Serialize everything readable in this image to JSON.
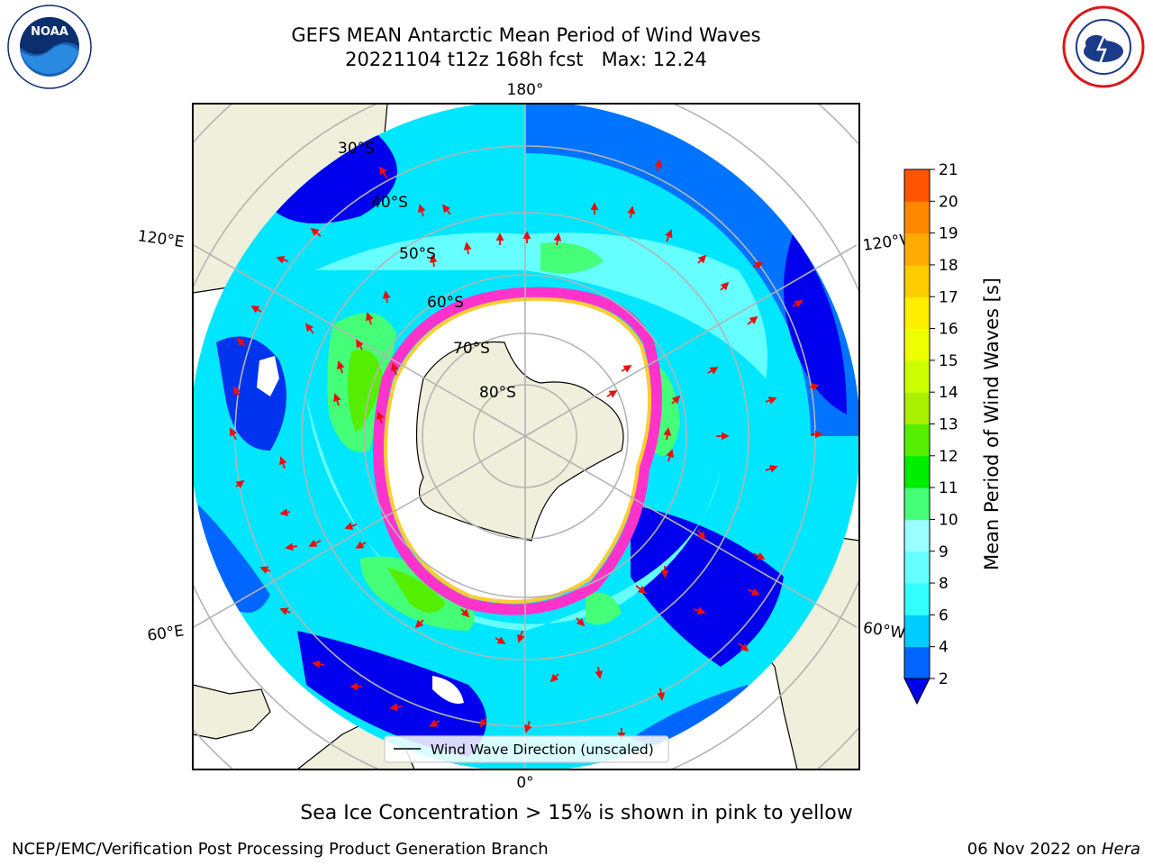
{
  "title": {
    "line1": "GEFS MEAN Antarctic Mean Period of Wind Waves",
    "line2": "20221104 t12z 168h fcst   Max: 12.24"
  },
  "logos": {
    "left": {
      "icon": "noaa-logo",
      "text": "NOAA"
    },
    "right": {
      "icon": "national-weather-service-logo",
      "text": "NATIONAL WEATHER SERVICE"
    }
  },
  "map": {
    "projection": "south-polar-stereographic",
    "longitude_labels": [
      "180°",
      "120°E",
      "120°W",
      "60°E",
      "60°W",
      "0°"
    ],
    "latitude_labels": [
      "30°S",
      "40°S",
      "50°S",
      "60°S",
      "70°S",
      "80°S"
    ],
    "legend_label": "Wind Wave Direction (unscaled)"
  },
  "colorbar": {
    "label": "Mean Period of Wind Waves [s]",
    "ticks": [
      "2",
      "4",
      "6",
      "8",
      "9",
      "10",
      "11",
      "12",
      "13",
      "14",
      "15",
      "16",
      "17",
      "18",
      "19",
      "20",
      "21"
    ],
    "colors": [
      "#0066ff",
      "#00ccff",
      "#33ffff",
      "#66ffff",
      "#99ffff",
      "#44ff77",
      "#00ee00",
      "#55ee00",
      "#aaee00",
      "#ccff00",
      "#eeff00",
      "#ffee00",
      "#ffcc00",
      "#ffaa00",
      "#ff8800",
      "#ff5500",
      "#ff2200",
      "#ff0000"
    ],
    "under_color": "#0000ee"
  },
  "colors": {
    "land": "#efefdb",
    "ice_low": "#ff33cc",
    "ice_high": "#ffcc33",
    "arrow": "#e81010"
  },
  "subtitle": "Sea Ice Concentration > 15% is shown in pink to yellow",
  "footer": {
    "left": "NCEP/EMC/Verification Post Processing Product Generation Branch",
    "date": "06 Nov 2022 on",
    "machine": "Hera"
  }
}
